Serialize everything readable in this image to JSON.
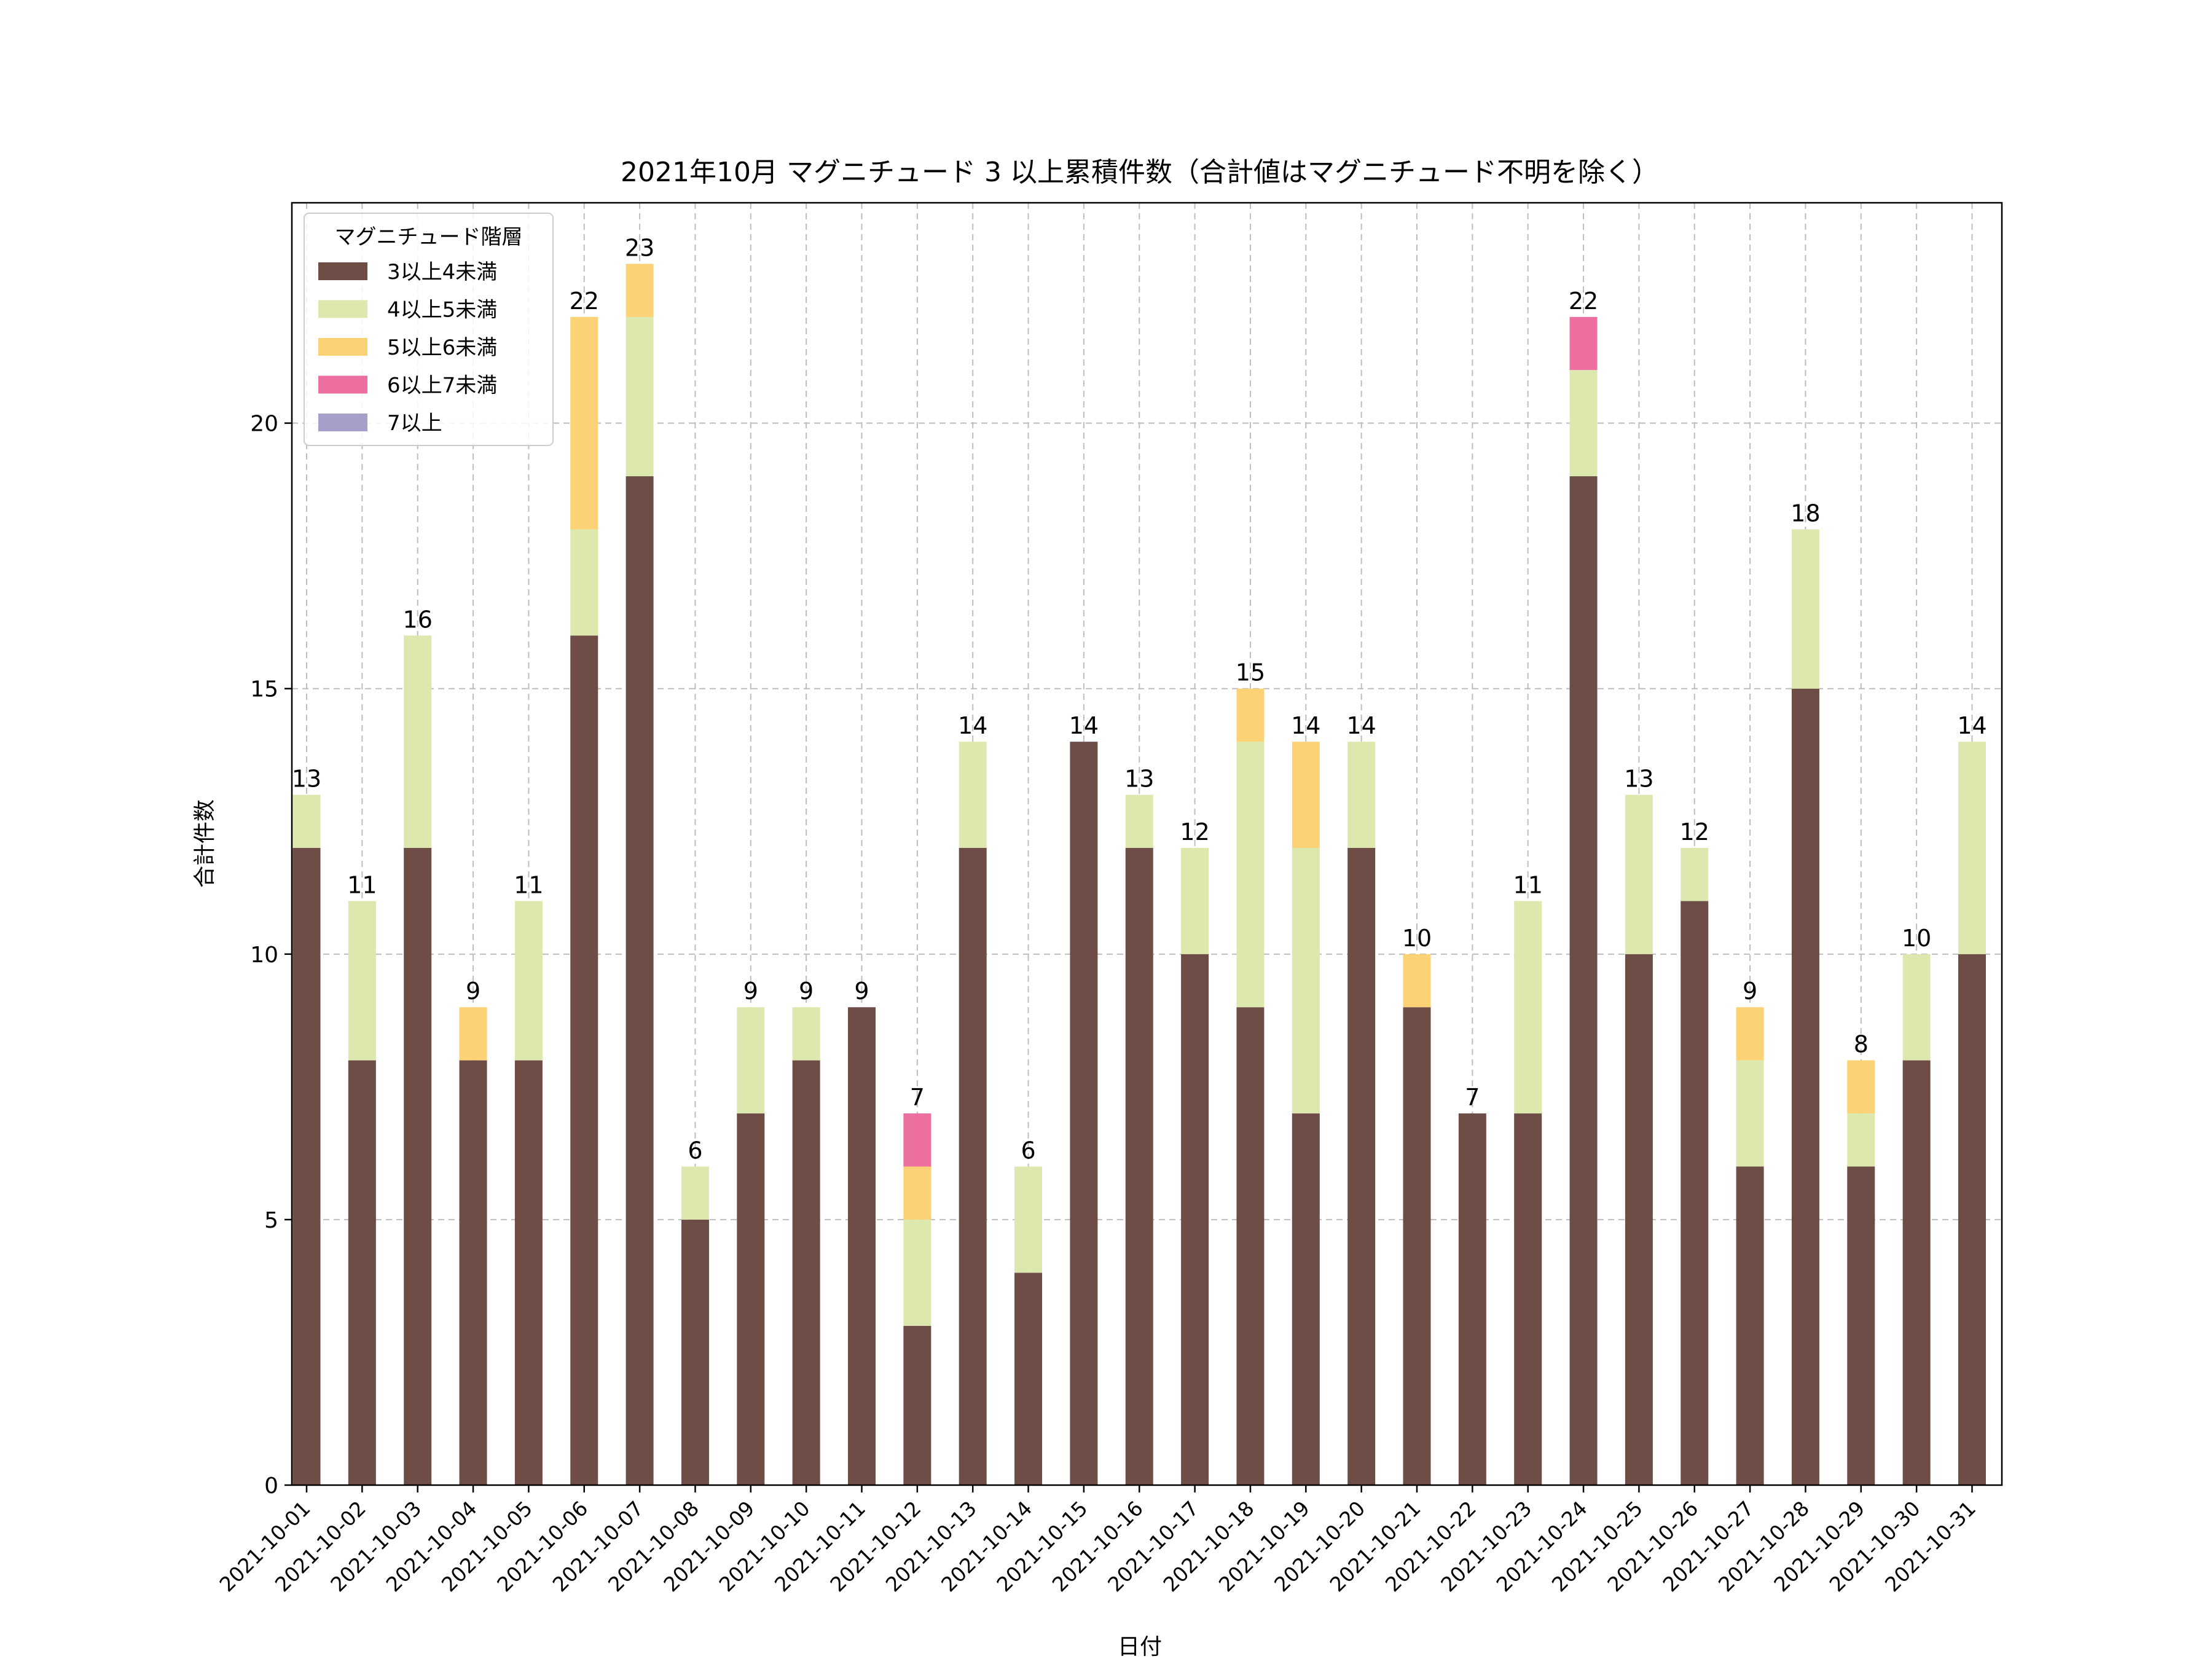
{
  "chart_data": {
    "type": "bar",
    "stacked": true,
    "title": "2021年10月 マグニチュード 3 以上累積件数（合計値はマグニチュード不明を除く）",
    "xlabel": "日付",
    "ylabel": "合計件数",
    "ylim": [
      0,
      24.15
    ],
    "yticks": [
      0,
      5,
      10,
      15,
      20
    ],
    "grid": true,
    "legend": {
      "title": "マグニチュード階層",
      "placement": "top-left"
    },
    "categories": [
      "2021-10-01",
      "2021-10-02",
      "2021-10-03",
      "2021-10-04",
      "2021-10-05",
      "2021-10-06",
      "2021-10-07",
      "2021-10-08",
      "2021-10-09",
      "2021-10-10",
      "2021-10-11",
      "2021-10-12",
      "2021-10-13",
      "2021-10-14",
      "2021-10-15",
      "2021-10-16",
      "2021-10-17",
      "2021-10-18",
      "2021-10-19",
      "2021-10-20",
      "2021-10-21",
      "2021-10-22",
      "2021-10-23",
      "2021-10-24",
      "2021-10-25",
      "2021-10-26",
      "2021-10-27",
      "2021-10-28",
      "2021-10-29",
      "2021-10-30",
      "2021-10-31"
    ],
    "series": [
      {
        "name": "3以上4未満",
        "color": "#6e4d47",
        "values": [
          12,
          8,
          12,
          8,
          8,
          16,
          19,
          5,
          7,
          8,
          9,
          3,
          12,
          4,
          14,
          12,
          10,
          9,
          7,
          12,
          9,
          7,
          7,
          19,
          10,
          11,
          6,
          15,
          6,
          8,
          10
        ]
      },
      {
        "name": "4以上5未満",
        "color": "#dde8ae",
        "values": [
          1,
          3,
          4,
          0,
          3,
          2,
          3,
          1,
          2,
          1,
          0,
          2,
          2,
          2,
          0,
          1,
          2,
          5,
          5,
          2,
          0,
          0,
          4,
          2,
          3,
          1,
          2,
          3,
          1,
          2,
          4
        ]
      },
      {
        "name": "5以上6未満",
        "color": "#fbd276",
        "values": [
          0,
          0,
          0,
          1,
          0,
          4,
          1,
          0,
          0,
          0,
          0,
          1,
          0,
          0,
          0,
          0,
          0,
          1,
          2,
          0,
          1,
          0,
          0,
          0,
          0,
          0,
          1,
          0,
          1,
          0,
          0
        ]
      },
      {
        "name": "6以上7未満",
        "color": "#ec6f9f",
        "values": [
          0,
          0,
          0,
          0,
          0,
          0,
          0,
          0,
          0,
          0,
          0,
          1,
          0,
          0,
          0,
          0,
          0,
          0,
          0,
          0,
          0,
          0,
          0,
          1,
          0,
          0,
          0,
          0,
          0,
          0,
          0
        ]
      },
      {
        "name": "7以上",
        "color": "#a59fca",
        "values": [
          0,
          0,
          0,
          0,
          0,
          0,
          0,
          0,
          0,
          0,
          0,
          0,
          0,
          0,
          0,
          0,
          0,
          0,
          0,
          0,
          0,
          0,
          0,
          0,
          0,
          0,
          0,
          0,
          0,
          0,
          0
        ]
      }
    ],
    "totals": [
      13,
      11,
      16,
      9,
      11,
      22,
      23,
      6,
      9,
      9,
      9,
      7,
      14,
      6,
      14,
      13,
      12,
      15,
      14,
      14,
      10,
      7,
      11,
      22,
      13,
      12,
      9,
      18,
      8,
      10,
      14
    ]
  }
}
